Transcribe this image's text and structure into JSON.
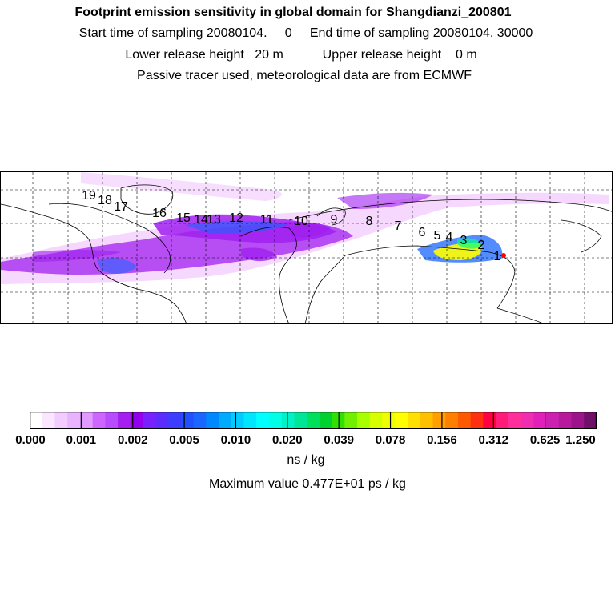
{
  "header": {
    "title": "Footprint emission sensitivity in global domain for Shangdianzi_200801",
    "sampling": "Start time of sampling 20080104.     0     End time of sampling 20080104. 30000",
    "release": "Lower release height   20 m           Upper release height    0 m",
    "note": "Passive tracer used, meteorological data are from ECMWF"
  },
  "map": {
    "trajectory_labels": [
      "1",
      "2",
      "3",
      "4",
      "5",
      "6",
      "7",
      "8",
      "9",
      "10",
      "11",
      "12",
      "13",
      "14",
      "15",
      "16",
      "17",
      "18",
      "19"
    ],
    "colors": {
      "low": "#f2c8ff",
      "mid": "#a020f0",
      "high": "#1a66ff",
      "peak": "#ffff00",
      "source": "#ff0000"
    }
  },
  "colorbar": {
    "labels": [
      "0.000",
      "0.001",
      "0.002",
      "0.005",
      "0.010",
      "0.020",
      "0.039",
      "0.078",
      "0.156",
      "0.312",
      "0.625",
      "1.250"
    ],
    "colors": [
      "#ffffff",
      "#fae6ff",
      "#f2ccff",
      "#eab3ff",
      "#e19aff",
      "#cc66ff",
      "#b84dff",
      "#a41ff0",
      "#9400ee",
      "#7a20ff",
      "#5c2cff",
      "#3d3dff",
      "#2050ff",
      "#1a66ff",
      "#0088ff",
      "#00aaff",
      "#00ccff",
      "#00e6ff",
      "#00ffff",
      "#00ffe6",
      "#00f0c8",
      "#00e699",
      "#00e05a",
      "#00d030",
      "#30e000",
      "#70f000",
      "#a8ff00",
      "#d8ff00",
      "#f0ff00",
      "#ffff00",
      "#ffe000",
      "#ffc000",
      "#ffa000",
      "#ff8000",
      "#ff5a00",
      "#ff3010",
      "#ff0040",
      "#ff1c78",
      "#ff2e9a",
      "#f02cb0",
      "#e020b8",
      "#cc20b0",
      "#b81a9e",
      "#9c148a",
      "#701068"
    ]
  },
  "footer": {
    "units": "ns / kg",
    "max_value": "Maximum value  0.477E+01 ps / kg"
  }
}
